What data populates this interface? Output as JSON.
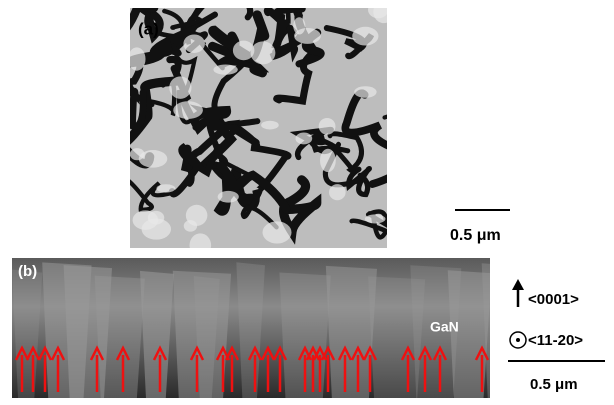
{
  "panel_a": {
    "label": "(a)",
    "scale_bar": "0.5 μm"
  },
  "panel_b": {
    "label": "(b)",
    "material": "GaN",
    "directions": [
      "<0001>",
      "<11-20>"
    ],
    "scale_bar": "0.5 μm"
  }
}
